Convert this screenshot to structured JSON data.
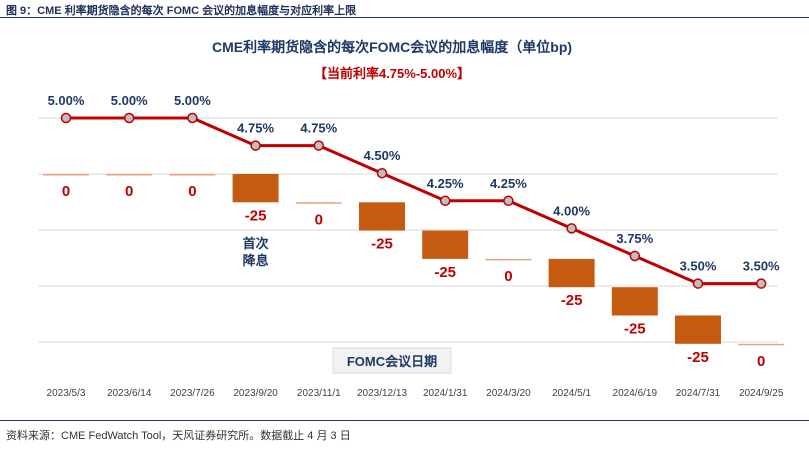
{
  "figure_caption": "图 9：CME 利率期货隐含的每次 FOMC 会议的加息幅度与对应利率上限",
  "source_note": "资料来源：CME FedWatch Tool，天风证券研究所。数据截止 4 月 3 日",
  "chart_data": {
    "type": "bar+line",
    "title": "CME利率期货隐含的每次FOMC会议的加息幅度（单位bp)",
    "subtitle": "【当前利率4.75%-5.00%】",
    "xlabel": "FOMC会议日期",
    "annotation": "首次\n降息",
    "categories": [
      "2023/5/3",
      "2023/6/14",
      "2023/7/26",
      "2023/9/20",
      "2023/11/1",
      "2023/12/13",
      "2024/1/31",
      "2024/3/20",
      "2024/5/1",
      "2024/6/19",
      "2024/7/31",
      "2024/9/25"
    ],
    "rate_labels": [
      "5.00%",
      "5.00%",
      "5.00%",
      "4.75%",
      "4.75%",
      "4.50%",
      "4.25%",
      "4.25%",
      "4.00%",
      "3.75%",
      "3.50%",
      "3.50%"
    ],
    "series": [
      {
        "name": "",
        "type": "line",
        "values": [
          5.0,
          5.0,
          5.0,
          4.75,
          4.75,
          4.5,
          4.25,
          4.25,
          4.0,
          3.75,
          3.5,
          3.5
        ]
      },
      {
        "name": "",
        "type": "waterfall-bar",
        "values": [
          0,
          0,
          0,
          -25,
          0,
          -25,
          -25,
          0,
          -25,
          -25,
          -25,
          0
        ]
      }
    ],
    "bar_labels": [
      "0",
      "0",
      "0",
      "-25",
      "0",
      "-25",
      "-25",
      "0",
      "-25",
      "-25",
      "-25",
      "0"
    ],
    "grid": true,
    "colors": {
      "line": "#c00000",
      "marker": "#bfbfbf",
      "bar": "#c55a11",
      "bar_label": "#c00000",
      "rate_label": "#1f3864",
      "title": "#1f3864",
      "subtitle": "#c00000"
    }
  }
}
